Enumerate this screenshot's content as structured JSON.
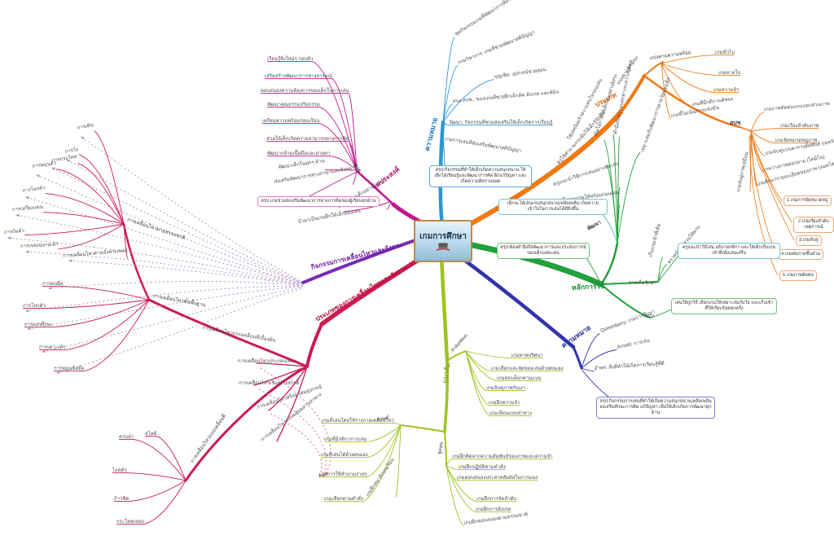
{
  "center": {
    "title": "เกมการศึกษา"
  },
  "colors": {
    "magenta": "#c2188c",
    "blue": "#2e96d2",
    "orange": "#ef7912",
    "green": "#21a03c",
    "navy": "#3333ad",
    "lime": "#9dc41e",
    "crimson": "#cd1a52",
    "purple": "#7a2ab2",
    "teal": "#4ab8b8"
  },
  "branches": {
    "purpose": {
      "label": "จุดประสงค์",
      "hub": "ช่วย",
      "path_note": "ช่วยพัฒนาเด็กอย่างไรบ้าง",
      "leaves": [
        "เรียนรู้สิ่งใหม่ๆ รอบตัว",
        "เสริมสร้างพัฒนาการทางอารมณ์",
        "ตอบสนองความต้องการของเด็กในการเล่น",
        "พัฒนาคุณธรรมจริยธรรม",
        "เตรียมความพร้อมก่อนเรียน",
        "ช่วยให้เด็กเกิดความสามารถทางการคิด",
        "พัฒนากล้ามเนื้อมือและสายตา",
        "พัฒนาเด็กในทุกๆ ด้าน",
        "ส่งเสริมพัฒนาการทางภาษาและสังคม"
      ],
      "summary": "สรุป:เกมช่วยส่งเสริมพัฒนาการทางการคิดของผู้เรียนทุกด้าน"
    },
    "meaning_th": {
      "label": "ความหมาย",
      "leaves": [
        "ชุดกิจกรรมเกมที่พัฒนาการคิดของเด็ก",
        "กรมวิชาการ: เกมที่ช่วยพัฒนาสติปัญญา",
        "บุญเชิด: อุปกรณ์ช่วยสอน",
        "สนง.สปช.: ของเล่นที่ช่วยฝึกเด็กคิด สังเกต และพินิจ",
        "วัฒนา: กิจกรรมที่ช่วยส่งเสริมให้เด็กเกิดการเรียนรู้",
        "เกมการเล่นที่ส่งเสริมพัฒนาสติปัญญา"
      ],
      "summary": "สรุป:กิจกรรมที่ทำให้เด็กเกิดความสนุกสนาน ให้เด็กได้เรียนรู้และพัฒนาการคิด ฝึกแก้ปัญหา และเกิดความคิดรวบยอด"
    },
    "types": {
      "label": "ประเภท",
      "split_label": "แบ่งตามลักษณะ",
      "groupA": {
        "label": "แบ่งตามความพร้อม",
        "leaves": [
          "เกมทั่วไป",
          "เกมทายใจ",
          "เกมความจำ",
          "เกมที่มีกติกาแพ้ชนะ",
          "เกมที่ไม่เน้นการแข่งขัน"
        ]
      },
      "groupB": {
        "label": "สปช",
        "leaves": [
          "เกมภาพตัดต่อแบบแยกส่วนภาพ",
          "เกมเรียงลำดับภาพ",
          "เกมจัดหมวดหมู่ภาพ",
          "เกมจับคู่แบบตารางสัมพันธ์ (เมตริกเกม)",
          "เกมวางภาพต่อปลาย (โดมิโน)",
          "เกมศึกษารายละเอียดของภาพ (ลอตโต)",
          "เกมจับคู่ภาพเหมือน"
        ],
        "numbered": [
          "1.เกมการจัดหมวดหมู่",
          "2.เกมเรียงลำดับเหตุการณ์",
          "3.เกมจับคู่",
          "4.เกมต่อภาพชิ้นส่วน",
          "5.เกมภาพตัดต่อ"
        ]
      }
    },
    "usage": {
      "label": "หลักการใช้",
      "develop": {
        "label": "พัฒนา",
        "leaves": [
          "ใช้เทคนิคเร้าความสนใจก่อนเล่น",
          "เปิดโอกาสให้เด็กเล่นอย่างอิสระ",
          "คำนึงถึงความแตกต่างระหว่างบุคคล",
          "เหมาะสมกับพัฒนาการตามวัยของเด็ก",
          "ครูใช้คำถามกระตุ้นให้เด็กรู้จักคิด",
          "ครูแนะนำวิธีการเล่นอย่างชัดเจน",
          "เตรียมสื่อและเกมให้พร้อมก่อนเล่น"
        ]
      },
      "keeping": {
        "label": "การเก็บรักษา",
        "leaves": [
          "เก็บเกมเข้าที่เดิม",
          "ตรวจนับชิ้นส่วนให้ครบ"
        ],
        "note": "ครูแนะนำวิธีเล่น อธิบายกติกา และให้เด็กเก็บเกมเข้าที่เมื่อเล่นเสร็จ"
      },
      "summary_label": "สรุป",
      "summary_note": "เล่นให้ถูกวิธี เลือกเกมให้เหมาะสมกับวัย และเก็บเข้าที่ให้เรียบร้อยทุกครั้ง",
      "box_play": "เด็กจะได้เล่นเกมสนุกสนานเพลิดเพลิน เกิดความเข้าใจในการเล่นได้ดียิ่งขึ้น",
      "box_summary": "สรุป:ต้องคำนึงถึงพัฒนาการและประสบการณ์ของเด็กแต่ละคน"
    },
    "meaning_en": {
      "label": "ความหมาย",
      "leaves": [
        "Quisenberry: เกมการศึกษา",
        "Arnold: การเล่น",
        "อำพร: สิ่งที่ทำให้เกิดการเรียนรู้ที่ดี"
      ],
      "summary": "สรุป:กิจกรรมการเล่นที่ทำให้เกิดความสนุกสนานเพลิดเพลิน ส่งเสริมทักษะการคิด แก้ปัญหา เพื่อให้เด็กเกิดการพัฒนาทุกด้าน"
    },
    "concepts": {
      "label": "แนวคิด",
      "kolumbus": {
        "label": "Kolumbus",
        "leaves": [
          "เกมทายปริศนา",
          "เกมเลือกและจัดของเล่นด้วยตนเอง",
          "เกมต่อบล็อกตามแบบ",
          "เกมจับคู่ภาพกับเงา",
          "เกมฝึกความจำ",
          "เกมเลียนแบบท่าทาง"
        ]
      },
      "kan": {
        "label": "กานต์",
        "leaves": [
          "เกมที่เล่นโดยใช้ร่างกายเคลื่อนไหว",
          "เกมที่มีกติกาการเล่น",
          "เกมที่เล่นได้ด้วยตนเอง",
          "เกมการใช้คำถามง่ายๆ",
          "เกมเลือกตามคำสั่ง",
          "เกมฝึกสมาธิก่อนเรียน"
        ]
      },
      "poonsuk": {
        "label": "พูลสุข",
        "leaves": [
          "เกมฝึกคิดจากความสัมพันธ์ของภาพและความจำ",
          "เกมฝึกปฏิบัติตามคำสั่ง",
          "เกมตอบสนองประสาทสัมผัสในการมอง",
          "เกมฝึกการจัดลำดับ",
          "เกมฝึกการสังเกต",
          "เกมฝึกตอบสนองตามธรรมชาติ"
        ]
      }
    },
    "movement_types": {
      "label": "ประเภทของการเคลื่อนไหวและจังหวะ",
      "items": [
        "การเคลื่อนไหวประกอบเพลง",
        "การเคลื่อนไหวเชิงสร้างสรรค์",
        "การเคลื่อนไหวพร้อมวัสดุอุปกรณ์",
        "การเคลื่อนไหวแบบผสมผสานท่าทาง"
      ],
      "natural": {
        "label": "การเคลื่อนไหวตามธรรมชาติ",
        "leaves": [
          "การเดิน",
          "การวิ่ง",
          "การกระโดด",
          "การหมุนตัว",
          "การโยกตัว",
          "การเหวี่ยงแขน",
          "การก้มตัว",
          "การเขย่งปลายเท้า",
          "การเคลื่อนไหวตามจังหวะเพลง"
        ]
      },
      "basic": {
        "label": "การเคลื่อนไหวขั้นพื้นฐาน",
        "leaves": [
          "การตบมือ",
          "การโยกตัว",
          "การผงกศีรษะ",
          "การเคาะเท้า",
          "การหมุนข้อมือ"
        ]
      },
      "loco_path_label": "การเคลื่อนไหวแบบเคลื่อนที่เบื้องต้น",
      "locomotor": {
        "label": "การเคลื่อนไหวแบบเคลื่อนที่",
        "leaves": [
          "ควบม้า",
          "สไลด์",
          "ไถลตัว",
          "ก้าวชิด",
          "กระโดดเขย่ง"
        ]
      }
    },
    "movement_activity": {
      "label": "กิจกรรมการเคลื่อนไหวและจังหวะ",
      "note": "นำมาเป็นเกมฝึกให้เด็กลองเล่น"
    }
  }
}
